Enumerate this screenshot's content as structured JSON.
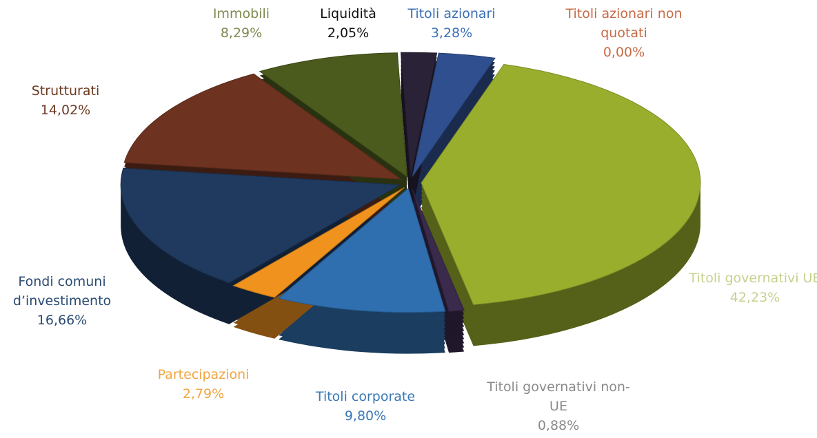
{
  "chart_data": {
    "type": "pie",
    "categories": [
      "Titoli azionari",
      "Titoli azionari non quotati",
      "Titoli governativi UE",
      "Titoli governativi non-UE",
      "Titoli corporate",
      "Partecipazioni",
      "Fondi comuni d’investimento",
      "Strutturati",
      "Immobili",
      "Liquidità"
    ],
    "values": [
      3.28,
      0.0,
      42.23,
      0.88,
      9.8,
      2.79,
      16.66,
      14.02,
      8.29,
      2.05
    ],
    "value_labels": [
      "3,28%",
      "0,00%",
      "42,23%",
      "0,88%",
      "9,80%",
      "2,79%",
      "16,66%",
      "14,02%",
      "8,29%",
      "2,05%"
    ],
    "colors": [
      "#2f4f8e",
      "#c0502a",
      "#9aae2e",
      "#3a2a4c",
      "#2f6eaf",
      "#f0921e",
      "#1f3a5e",
      "#6d3320",
      "#4b5a1d",
      "#2a2236"
    ]
  }
}
